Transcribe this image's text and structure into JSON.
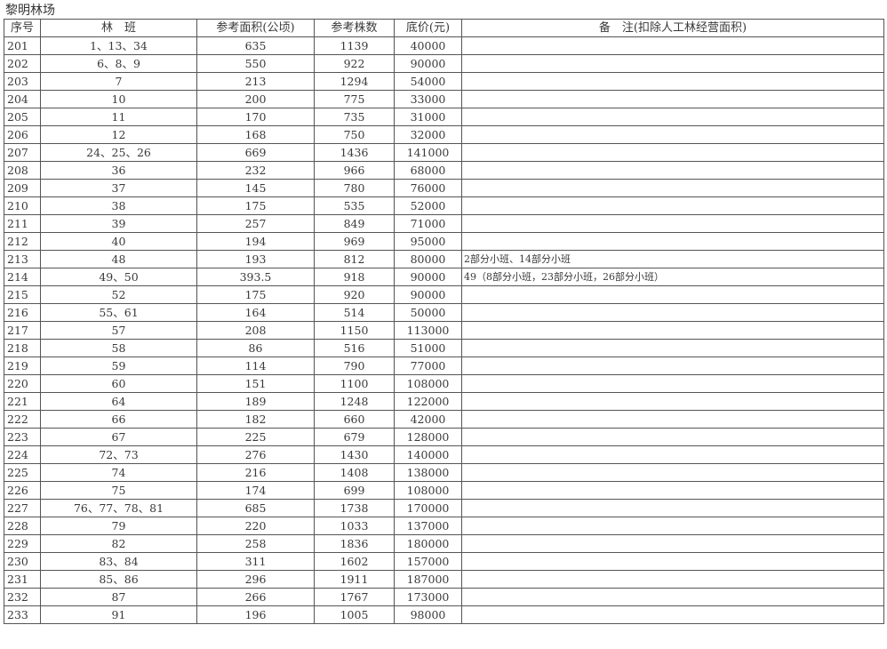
{
  "title": "黎明林场",
  "headers": [
    "序号",
    "林　班",
    "参考面积(公顷)",
    "参考株数",
    "底价(元)",
    "备　注(扣除人工林经营面积)"
  ],
  "rows": [
    [
      "201",
      "1、13、34",
      "635",
      "1139",
      "40000",
      ""
    ],
    [
      "202",
      "6、8、9",
      "550",
      "922",
      "90000",
      ""
    ],
    [
      "203",
      "7",
      "213",
      "1294",
      "54000",
      ""
    ],
    [
      "204",
      "10",
      "200",
      "775",
      "33000",
      ""
    ],
    [
      "205",
      "11",
      "170",
      "735",
      "31000",
      ""
    ],
    [
      "206",
      "12",
      "168",
      "750",
      "32000",
      ""
    ],
    [
      "207",
      "24、25、26",
      "669",
      "1436",
      "141000",
      ""
    ],
    [
      "208",
      "36",
      "232",
      "966",
      "68000",
      ""
    ],
    [
      "209",
      "37",
      "145",
      "780",
      "76000",
      ""
    ],
    [
      "210",
      "38",
      "175",
      "535",
      "52000",
      ""
    ],
    [
      "211",
      "39",
      "257",
      "849",
      "71000",
      ""
    ],
    [
      "212",
      "40",
      "194",
      "969",
      "95000",
      ""
    ],
    [
      "213",
      "48",
      "193",
      "812",
      "80000",
      "2部分小班、14部分小班"
    ],
    [
      "214",
      "49、50",
      "393.5",
      "918",
      "90000",
      "49（8部分小班，23部分小班，26部分小班）"
    ],
    [
      "215",
      "52",
      "175",
      "920",
      "90000",
      ""
    ],
    [
      "216",
      "55、61",
      "164",
      "514",
      "50000",
      ""
    ],
    [
      "217",
      "57",
      "208",
      "1150",
      "113000",
      ""
    ],
    [
      "218",
      "58",
      "86",
      "516",
      "51000",
      ""
    ],
    [
      "219",
      "59",
      "114",
      "790",
      "77000",
      ""
    ],
    [
      "220",
      "60",
      "151",
      "1100",
      "108000",
      ""
    ],
    [
      "221",
      "64",
      "189",
      "1248",
      "122000",
      ""
    ],
    [
      "222",
      "66",
      "182",
      "660",
      "42000",
      ""
    ],
    [
      "223",
      "67",
      "225",
      "679",
      "128000",
      ""
    ],
    [
      "224",
      "72、73",
      "276",
      "1430",
      "140000",
      ""
    ],
    [
      "225",
      "74",
      "216",
      "1408",
      "138000",
      ""
    ],
    [
      "226",
      "75",
      "174",
      "699",
      "108000",
      ""
    ],
    [
      "227",
      "76、77、78、81",
      "685",
      "1738",
      "170000",
      ""
    ],
    [
      "228",
      "79",
      "220",
      "1033",
      "137000",
      ""
    ],
    [
      "229",
      "82",
      "258",
      "1836",
      "180000",
      ""
    ],
    [
      "230",
      "83、84",
      "311",
      "1602",
      "157000",
      ""
    ],
    [
      "231",
      "85、86",
      "296",
      "1911",
      "187000",
      ""
    ],
    [
      "232",
      "87",
      "266",
      "1767",
      "173000",
      ""
    ],
    [
      "233",
      "91",
      "196",
      "1005",
      "98000",
      ""
    ]
  ]
}
